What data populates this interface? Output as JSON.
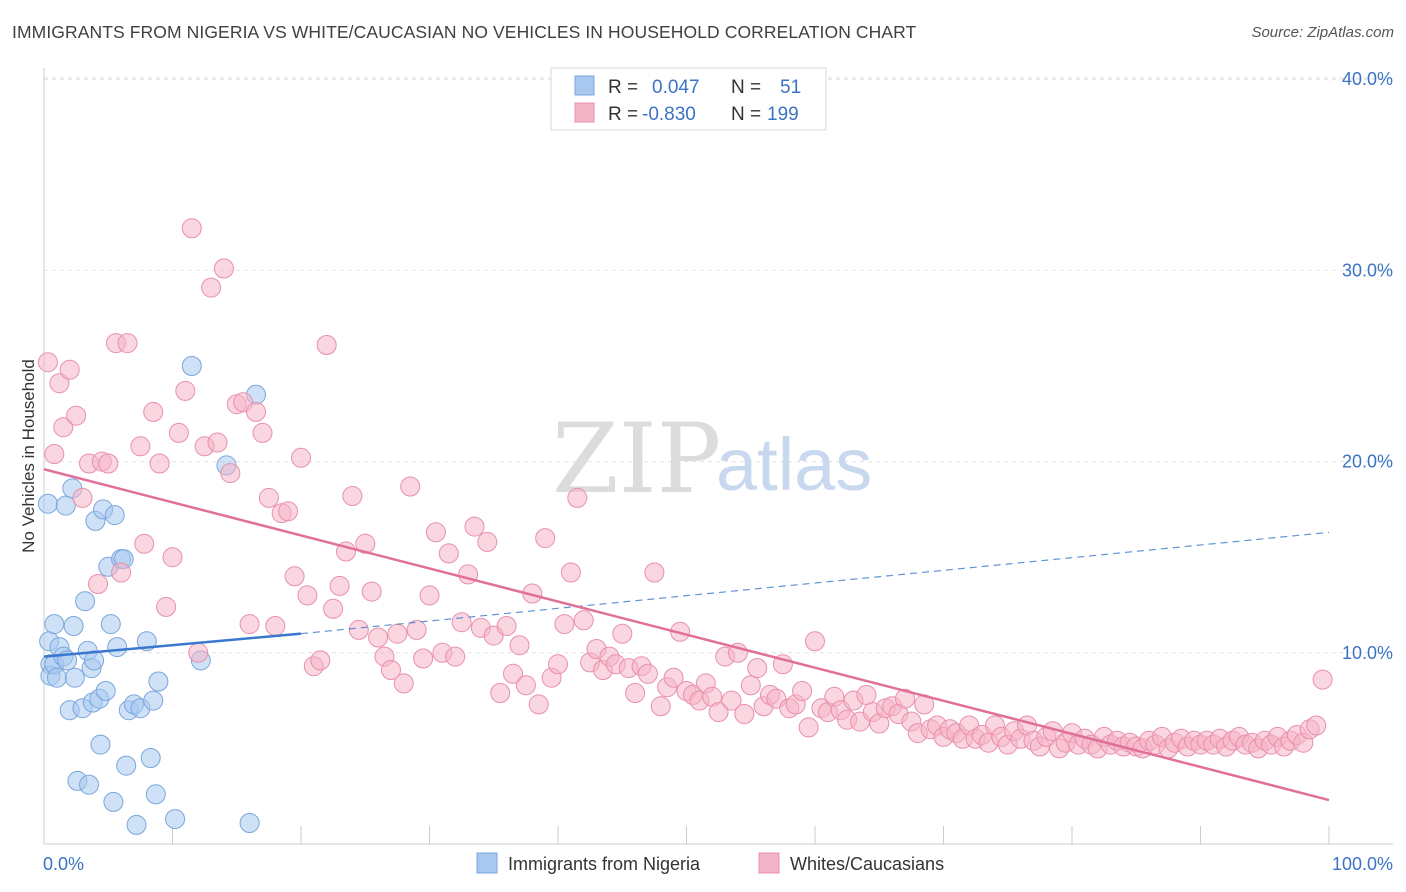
{
  "header": {
    "title": "IMMIGRANTS FROM NIGERIA VS WHITE/CAUCASIAN NO VEHICLES IN HOUSEHOLD CORRELATION CHART",
    "source": "Source: ZipAtlas.com"
  },
  "watermark": {
    "zip": "ZIP",
    "atlas": "atlas"
  },
  "legend_top": {
    "rows": [
      {
        "r_label": "R =",
        "r_value": "0.047",
        "n_label": "N =",
        "n_value": "51",
        "color": "#a8c8f0"
      },
      {
        "r_label": "R =",
        "r_value": "-0.830",
        "n_label": "N =",
        "n_value": "199",
        "color": "#f5b5c8"
      }
    ]
  },
  "chart_data": {
    "type": "scatter",
    "ylabel": "No Vehicles in Household",
    "xlabel": "",
    "xlim": [
      0,
      100
    ],
    "ylim": [
      0,
      41
    ],
    "y_ticks": [
      {
        "value": 10,
        "label": "10.0%"
      },
      {
        "value": 20,
        "label": "20.0%"
      },
      {
        "value": 30,
        "label": "30.0%"
      },
      {
        "value": 40,
        "label": "40.0%"
      }
    ],
    "x_tick_labels": {
      "min": "0.0%",
      "max": "100.0%"
    },
    "x_minor_ticks": [
      10,
      20,
      30,
      40,
      50,
      60,
      70,
      80,
      90,
      100
    ],
    "grid": true,
    "legend_position": "bottom",
    "series": [
      {
        "name": "Immigrants from Nigeria",
        "color": "#a8c8f0",
        "stroke": "#7aa6dc",
        "trend": {
          "x0": 0,
          "y0": 9.8,
          "x1": 20,
          "y1": 11.0,
          "dashed_to_x": 100,
          "dashed_to_y": 16.3,
          "color": "#3a78d0"
        },
        "points": [
          [
            0.3,
            17.8
          ],
          [
            0.4,
            10.6
          ],
          [
            0.5,
            9.4
          ],
          [
            0.5,
            8.8
          ],
          [
            0.8,
            11.5
          ],
          [
            0.8,
            9.4
          ],
          [
            1,
            8.7
          ],
          [
            1.2,
            10.3
          ],
          [
            1.5,
            9.8
          ],
          [
            1.7,
            17.7
          ],
          [
            1.8,
            9.6
          ],
          [
            2,
            7.0
          ],
          [
            2.2,
            18.6
          ],
          [
            2.3,
            11.4
          ],
          [
            2.4,
            8.7
          ],
          [
            2.6,
            3.3
          ],
          [
            3,
            7.1
          ],
          [
            3.2,
            12.7
          ],
          [
            3.4,
            10.1
          ],
          [
            3.5,
            3.1
          ],
          [
            3.7,
            9.2
          ],
          [
            3.8,
            7.4
          ],
          [
            3.9,
            9.6
          ],
          [
            4,
            16.9
          ],
          [
            4.3,
            7.6
          ],
          [
            4.4,
            5.2
          ],
          [
            4.6,
            17.5
          ],
          [
            4.8,
            8.0
          ],
          [
            5,
            14.5
          ],
          [
            5.2,
            11.5
          ],
          [
            5.4,
            2.2
          ],
          [
            5.5,
            17.2
          ],
          [
            5.7,
            10.3
          ],
          [
            6,
            14.9
          ],
          [
            6.2,
            14.9
          ],
          [
            6.4,
            4.1
          ],
          [
            6.6,
            7.0
          ],
          [
            7,
            7.3
          ],
          [
            7.2,
            1.0
          ],
          [
            7.5,
            7.1
          ],
          [
            8,
            10.6
          ],
          [
            8.3,
            4.5
          ],
          [
            8.5,
            7.5
          ],
          [
            8.7,
            2.6
          ],
          [
            8.9,
            8.5
          ],
          [
            10.2,
            1.3
          ],
          [
            11.5,
            25.0
          ],
          [
            12.2,
            9.6
          ],
          [
            14.2,
            19.8
          ],
          [
            16,
            1.1
          ],
          [
            16.5,
            23.5
          ]
        ]
      },
      {
        "name": "Whites/Caucasians",
        "color": "#f5b5c8",
        "stroke": "#e890ab",
        "trend": {
          "x0": 0,
          "y0": 19.6,
          "x1": 100,
          "y1": 2.3,
          "color": "#e07097"
        },
        "points": [
          [
            0.3,
            25.2
          ],
          [
            0.8,
            20.4
          ],
          [
            1.2,
            24.1
          ],
          [
            1.5,
            21.8
          ],
          [
            2,
            24.8
          ],
          [
            2.5,
            22.4
          ],
          [
            3,
            18.1
          ],
          [
            3.5,
            19.9
          ],
          [
            4.2,
            13.6
          ],
          [
            4.5,
            20.0
          ],
          [
            5,
            19.9
          ],
          [
            5.6,
            26.2
          ],
          [
            6,
            14.2
          ],
          [
            6.5,
            26.2
          ],
          [
            7.5,
            20.8
          ],
          [
            7.8,
            15.7
          ],
          [
            8.5,
            22.6
          ],
          [
            9,
            19.9
          ],
          [
            9.5,
            12.4
          ],
          [
            10,
            15.0
          ],
          [
            10.5,
            21.5
          ],
          [
            11,
            23.7
          ],
          [
            11.5,
            32.2
          ],
          [
            12,
            10.0
          ],
          [
            12.5,
            20.8
          ],
          [
            13,
            29.1
          ],
          [
            13.5,
            21.0
          ],
          [
            14,
            30.1
          ],
          [
            14.5,
            19.4
          ],
          [
            15,
            23.0
          ],
          [
            15.5,
            23.1
          ],
          [
            16,
            11.5
          ],
          [
            16.5,
            22.6
          ],
          [
            17,
            21.5
          ],
          [
            17.5,
            18.1
          ],
          [
            18,
            11.4
          ],
          [
            18.5,
            17.3
          ],
          [
            19,
            17.4
          ],
          [
            19.5,
            14.0
          ],
          [
            20,
            20.2
          ],
          [
            20.5,
            13.0
          ],
          [
            21,
            9.3
          ],
          [
            21.5,
            9.6
          ],
          [
            22,
            26.1
          ],
          [
            22.5,
            12.3
          ],
          [
            23,
            13.5
          ],
          [
            23.5,
            15.3
          ],
          [
            24,
            18.2
          ],
          [
            24.5,
            11.2
          ],
          [
            25,
            15.7
          ],
          [
            25.5,
            13.2
          ],
          [
            26,
            10.8
          ],
          [
            26.5,
            9.8
          ],
          [
            27,
            9.1
          ],
          [
            27.5,
            11.0
          ],
          [
            28,
            8.4
          ],
          [
            28.5,
            18.7
          ],
          [
            29,
            11.2
          ],
          [
            29.5,
            9.7
          ],
          [
            30,
            13.0
          ],
          [
            30.5,
            16.3
          ],
          [
            31,
            10.0
          ],
          [
            31.5,
            15.2
          ],
          [
            32,
            9.8
          ],
          [
            32.5,
            11.6
          ],
          [
            33,
            14.1
          ],
          [
            33.5,
            16.6
          ],
          [
            34,
            11.3
          ],
          [
            34.5,
            15.8
          ],
          [
            35,
            10.9
          ],
          [
            35.5,
            7.9
          ],
          [
            36,
            11.4
          ],
          [
            36.5,
            8.9
          ],
          [
            37,
            10.4
          ],
          [
            37.5,
            8.3
          ],
          [
            38,
            13.1
          ],
          [
            38.5,
            7.3
          ],
          [
            39,
            16.0
          ],
          [
            39.5,
            8.7
          ],
          [
            40,
            9.4
          ],
          [
            40.5,
            11.5
          ],
          [
            41,
            14.2
          ],
          [
            41.5,
            18.1
          ],
          [
            42,
            11.7
          ],
          [
            42.5,
            9.5
          ],
          [
            43,
            10.2
          ],
          [
            43.5,
            9.1
          ],
          [
            44,
            9.8
          ],
          [
            44.5,
            9.4
          ],
          [
            45,
            11.0
          ],
          [
            45.5,
            9.2
          ],
          [
            46,
            7.9
          ],
          [
            46.5,
            9.3
          ],
          [
            47,
            8.9
          ],
          [
            47.5,
            14.2
          ],
          [
            48,
            7.2
          ],
          [
            48.5,
            8.2
          ],
          [
            49,
            8.7
          ],
          [
            49.5,
            11.1
          ],
          [
            50,
            8.0
          ],
          [
            50.5,
            7.8
          ],
          [
            51,
            7.5
          ],
          [
            51.5,
            8.4
          ],
          [
            52,
            7.7
          ],
          [
            52.5,
            6.9
          ],
          [
            53,
            9.8
          ],
          [
            53.5,
            7.5
          ],
          [
            54,
            10.0
          ],
          [
            54.5,
            6.8
          ],
          [
            55,
            8.3
          ],
          [
            55.5,
            9.2
          ],
          [
            56,
            7.2
          ],
          [
            56.5,
            7.8
          ],
          [
            57,
            7.6
          ],
          [
            57.5,
            9.4
          ],
          [
            58,
            7.1
          ],
          [
            58.5,
            7.3
          ],
          [
            59,
            8.0
          ],
          [
            59.5,
            6.1
          ],
          [
            60,
            10.6
          ],
          [
            60.5,
            7.1
          ],
          [
            61,
            6.9
          ],
          [
            61.5,
            7.7
          ],
          [
            62,
            7.0
          ],
          [
            62.5,
            6.5
          ],
          [
            63,
            7.5
          ],
          [
            63.5,
            6.4
          ],
          [
            64,
            7.8
          ],
          [
            64.5,
            6.9
          ],
          [
            65,
            6.3
          ],
          [
            65.5,
            7.1
          ],
          [
            66,
            7.2
          ],
          [
            66.5,
            6.8
          ],
          [
            67,
            7.6
          ],
          [
            67.5,
            6.4
          ],
          [
            68,
            5.8
          ],
          [
            68.5,
            7.3
          ],
          [
            69,
            6.0
          ],
          [
            69.5,
            6.2
          ],
          [
            70,
            5.6
          ],
          [
            70.5,
            6.0
          ],
          [
            71,
            5.8
          ],
          [
            71.5,
            5.5
          ],
          [
            72,
            6.2
          ],
          [
            72.5,
            5.5
          ],
          [
            73,
            5.7
          ],
          [
            73.5,
            5.3
          ],
          [
            74,
            6.2
          ],
          [
            74.5,
            5.6
          ],
          [
            75,
            5.2
          ],
          [
            75.5,
            5.9
          ],
          [
            76,
            5.5
          ],
          [
            76.5,
            6.2
          ],
          [
            77,
            5.4
          ],
          [
            77.5,
            5.1
          ],
          [
            78,
            5.6
          ],
          [
            78.5,
            5.9
          ],
          [
            79,
            5.0
          ],
          [
            79.5,
            5.3
          ],
          [
            80,
            5.8
          ],
          [
            80.5,
            5.2
          ],
          [
            81,
            5.5
          ],
          [
            81.5,
            5.2
          ],
          [
            82,
            5.0
          ],
          [
            82.5,
            5.6
          ],
          [
            83,
            5.2
          ],
          [
            83.5,
            5.4
          ],
          [
            84,
            5.1
          ],
          [
            84.5,
            5.3
          ],
          [
            85,
            5.1
          ],
          [
            85.5,
            5.0
          ],
          [
            86,
            5.4
          ],
          [
            86.5,
            5.2
          ],
          [
            87,
            5.6
          ],
          [
            87.5,
            5.0
          ],
          [
            88,
            5.3
          ],
          [
            88.5,
            5.5
          ],
          [
            89,
            5.1
          ],
          [
            89.5,
            5.4
          ],
          [
            90,
            5.2
          ],
          [
            90.5,
            5.4
          ],
          [
            91,
            5.2
          ],
          [
            91.5,
            5.5
          ],
          [
            92,
            5.1
          ],
          [
            92.5,
            5.4
          ],
          [
            93,
            5.6
          ],
          [
            93.5,
            5.2
          ],
          [
            94,
            5.3
          ],
          [
            94.5,
            5.0
          ],
          [
            95,
            5.4
          ],
          [
            95.5,
            5.2
          ],
          [
            96,
            5.6
          ],
          [
            96.5,
            5.1
          ],
          [
            97,
            5.4
          ],
          [
            97.5,
            5.7
          ],
          [
            98,
            5.3
          ],
          [
            98.5,
            6.0
          ],
          [
            99,
            6.2
          ],
          [
            99.5,
            8.6
          ]
        ]
      }
    ]
  }
}
